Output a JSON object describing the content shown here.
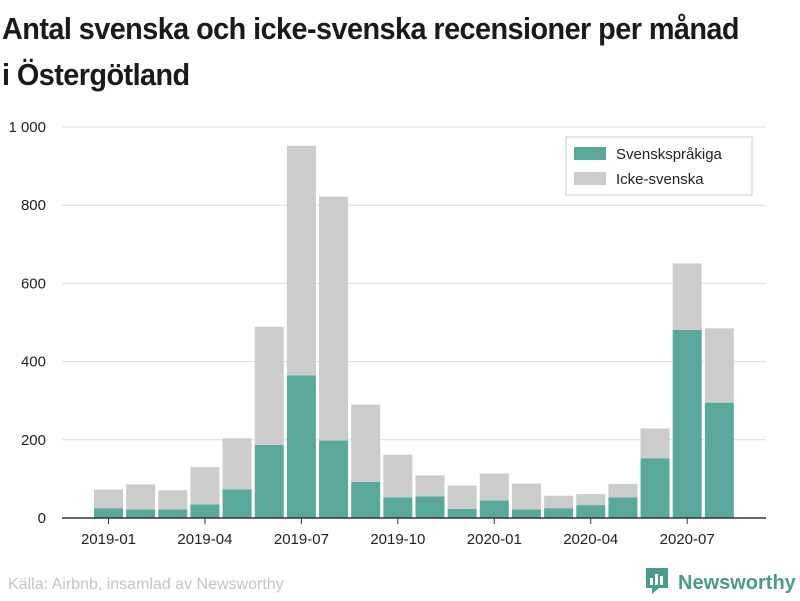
{
  "title": "Antal svenska och icke-svenska recensioner per månad i Östergötland",
  "source": "Källa: Airbnb, insamlad av Newsworthy",
  "brand": "Newsworthy",
  "colors": {
    "swedish": "#5aa89c",
    "non_swedish": "#cccccc",
    "brand": "#4a9a8e"
  },
  "chart_data": {
    "type": "bar",
    "stacked": true,
    "categories": [
      "2019-01",
      "2019-02",
      "2019-03",
      "2019-04",
      "2019-05",
      "2019-06",
      "2019-07",
      "2019-08",
      "2019-09",
      "2019-10",
      "2019-11",
      "2019-12",
      "2020-01",
      "2020-02",
      "2020-03",
      "2020-04",
      "2020-05",
      "2020-06",
      "2020-07",
      "2020-08"
    ],
    "x_tick_labels": [
      "2019-01",
      "2019-04",
      "2019-07",
      "2019-10",
      "2020-01",
      "2020-04",
      "2020-07"
    ],
    "series": [
      {
        "name": "Svenskspråkiga",
        "color": "#5aa89c",
        "values": [
          25,
          22,
          22,
          35,
          73,
          187,
          365,
          198,
          92,
          53,
          55,
          23,
          45,
          22,
          25,
          33,
          53,
          153,
          481,
          295
        ]
      },
      {
        "name": "Icke-svenska",
        "color": "#cccccc",
        "values": [
          48,
          64,
          49,
          95,
          131,
          302,
          587,
          624,
          198,
          109,
          54,
          60,
          69,
          66,
          32,
          28,
          34,
          76,
          170,
          190
        ]
      }
    ],
    "y_ticks": [
      0,
      200,
      400,
      600,
      800,
      1000
    ],
    "y_tick_labels": [
      "0",
      "200",
      "400",
      "600",
      "800",
      "1 000"
    ],
    "ylim": [
      0,
      1000
    ],
    "grid": true,
    "legend_position": "top-right"
  }
}
